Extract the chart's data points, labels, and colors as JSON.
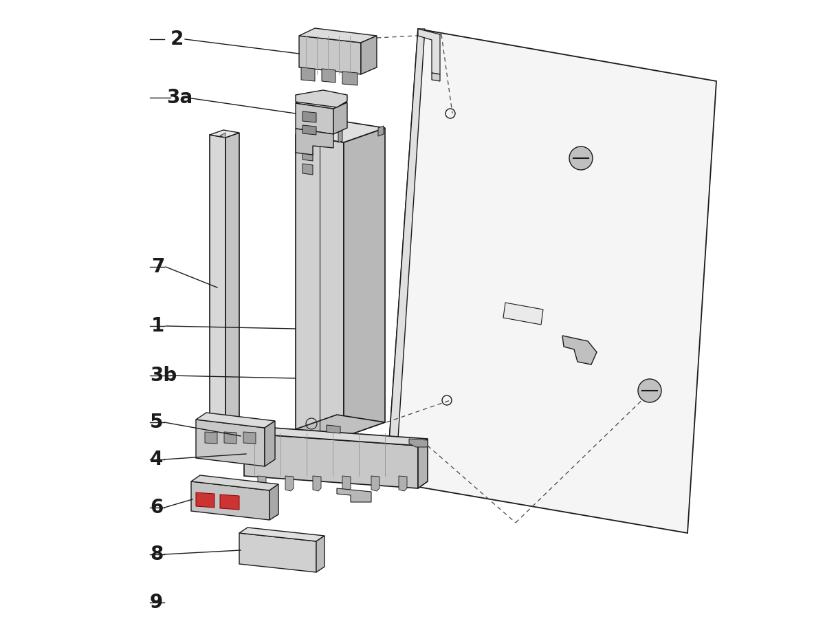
{
  "background_color": "#ffffff",
  "line_color": "#1a1a1a",
  "fc_light": "#d8d8d8",
  "fc_mid": "#c0c0c0",
  "fc_dark": "#a8a8a8",
  "fc_panel": "#f2f2f2",
  "label_color": "#1a1a1a",
  "figsize": [
    12.0,
    9.0
  ],
  "dpi": 100
}
